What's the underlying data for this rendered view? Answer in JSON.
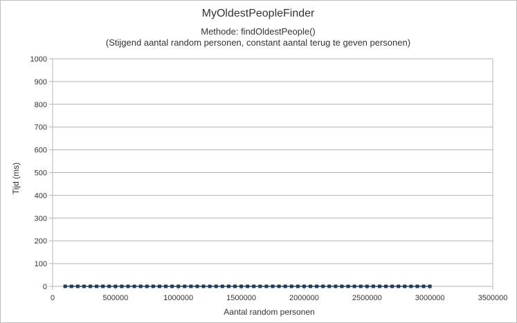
{
  "chart_data": {
    "type": "line",
    "title": "MyOldestPeopleFinder",
    "subtitle_lines": [
      "Methode: findOldestPeople()",
      "(Stijgend aantal random personen, constant aantal terug te geven personen)"
    ],
    "xlabel": "Aantal random personen",
    "ylabel": "Tijd (ms)",
    "xlim": [
      0,
      3500000
    ],
    "ylim": [
      0,
      1000
    ],
    "x_ticks": [
      0,
      500000,
      1000000,
      1500000,
      2000000,
      2500000,
      3000000,
      3500000
    ],
    "y_ticks": [
      0,
      100,
      200,
      300,
      400,
      500,
      600,
      700,
      800,
      900,
      1000
    ],
    "grid": "horizontal",
    "legend": "none",
    "series": [
      {
        "color": "#1f3b57",
        "marker": "square",
        "x": [
          100000,
          150000,
          200000,
          250000,
          300000,
          350000,
          400000,
          450000,
          500000,
          550000,
          600000,
          650000,
          700000,
          750000,
          800000,
          850000,
          900000,
          950000,
          1000000,
          1050000,
          1100000,
          1150000,
          1200000,
          1250000,
          1300000,
          1350000,
          1400000,
          1450000,
          1500000,
          1550000,
          1600000,
          1650000,
          1700000,
          1750000,
          1800000,
          1850000,
          1900000,
          1950000,
          2000000,
          2050000,
          2100000,
          2150000,
          2200000,
          2250000,
          2300000,
          2350000,
          2400000,
          2450000,
          2500000,
          2550000,
          2600000,
          2650000,
          2700000,
          2750000,
          2800000,
          2850000,
          2900000,
          2950000,
          3000000
        ],
        "y": [
          0,
          0,
          0,
          0,
          0,
          0,
          0,
          0,
          0,
          0,
          0,
          0,
          0,
          0,
          0,
          0,
          0,
          0,
          0,
          0,
          0,
          0,
          0,
          0,
          0,
          0,
          0,
          0,
          0,
          0,
          0,
          0,
          0,
          0,
          0,
          0,
          0,
          0,
          0,
          0,
          0,
          0,
          0,
          0,
          0,
          0,
          0,
          0,
          0,
          0,
          0,
          0,
          0,
          0,
          0,
          0,
          0,
          0,
          0
        ]
      }
    ]
  }
}
